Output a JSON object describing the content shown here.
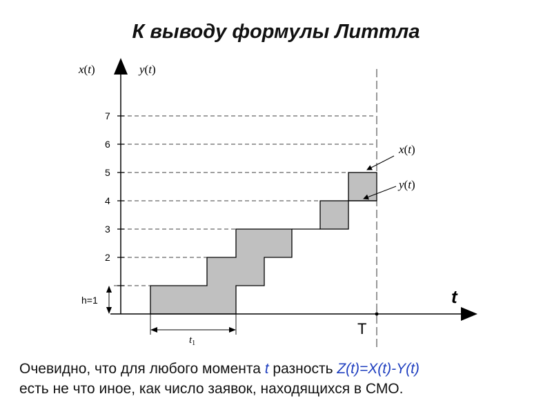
{
  "title": "К выводу формулы Литтла",
  "axes": {
    "y_label_x_func": "x",
    "y_label_y_func": "y",
    "arg": "t",
    "x_axis_label": "t",
    "T_label": "T"
  },
  "levels": [
    "7",
    "6",
    "5",
    "4",
    "3",
    "2"
  ],
  "h_label": "h=1",
  "t1_label": "t",
  "t1_sub": "1",
  "annotations": {
    "x_func": "x",
    "y_func": "y",
    "arg": "t"
  },
  "caption": {
    "line1_part1": "Очевидно, что для любого момента ",
    "line1_t": "t",
    "line1_part2": " разность ",
    "line1_formula": "Z(t)=X(t)-Y(t)",
    "line2": "есть не что иное, как число заявок, находящихся в СМО."
  },
  "colors": {
    "fill": "#c0c0c0",
    "stroke": "#000000",
    "accent": "#1f3fbf"
  }
}
